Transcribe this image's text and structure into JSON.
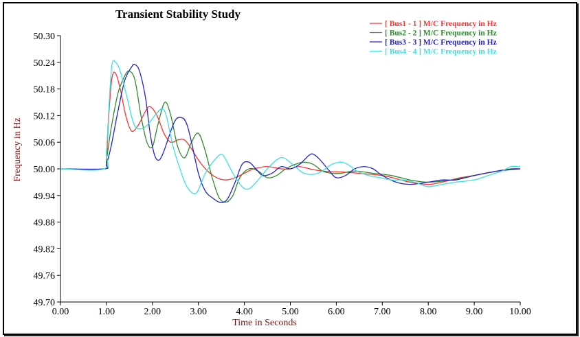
{
  "chart_data": {
    "type": "line",
    "title": "Transient Stability Study",
    "xlabel": "Time in Seconds",
    "ylabel": "Frequency in Hz",
    "xlim": [
      0,
      10
    ],
    "ylim": [
      49.7,
      50.3
    ],
    "x_ticks": [
      "0.00",
      "1.00",
      "2.00",
      "3.00",
      "4.00",
      "5.00",
      "6.00",
      "7.00",
      "8.00",
      "9.00",
      "10.00"
    ],
    "y_ticks": [
      "49.70",
      "49.76",
      "49.82",
      "49.88",
      "49.94",
      "50.00",
      "50.06",
      "50.12",
      "50.18",
      "50.24",
      "50.30"
    ],
    "grid": false,
    "legend_position": "top-right",
    "series": [
      {
        "name": "[ Bus1    -    1 ] M/C Frequency in Hz",
        "color": "#ff3030",
        "x": [
          0,
          0.95,
          1.0,
          1.05,
          1.12,
          1.2,
          1.3,
          1.42,
          1.55,
          1.7,
          1.85,
          1.95,
          2.1,
          2.25,
          2.4,
          2.55,
          2.7,
          2.85,
          3.0,
          3.2,
          3.4,
          3.6,
          3.8,
          4.0,
          4.2,
          4.5,
          4.8,
          5.0,
          5.2,
          5.5,
          5.8,
          6.1,
          6.5,
          7.0,
          7.3,
          7.6,
          8.0,
          8.3,
          8.7,
          9.0,
          9.5,
          9.8,
          10.0
        ],
        "values": [
          50.0,
          50.0,
          50.02,
          50.12,
          50.205,
          50.215,
          50.18,
          50.12,
          50.085,
          50.1,
          50.13,
          50.14,
          50.12,
          50.08,
          50.06,
          50.065,
          50.065,
          50.045,
          50.02,
          49.995,
          49.98,
          49.975,
          49.98,
          49.99,
          50.0,
          50.005,
          50.0,
          50.0,
          50.005,
          49.998,
          49.994,
          49.993,
          49.99,
          49.985,
          49.978,
          49.97,
          49.965,
          49.97,
          49.98,
          49.985,
          49.995,
          50.0,
          50.0
        ]
      },
      {
        "name": "[ Bus2    -    2 ] M/C Frequency in Hz",
        "color": "#2e8b2e",
        "x": [
          0,
          0.95,
          1.0,
          1.1,
          1.25,
          1.4,
          1.5,
          1.62,
          1.75,
          1.88,
          2.0,
          2.12,
          2.27,
          2.4,
          2.55,
          2.7,
          2.85,
          3.0,
          3.15,
          3.3,
          3.45,
          3.6,
          3.75,
          3.9,
          4.1,
          4.3,
          4.5,
          4.7,
          4.9,
          5.1,
          5.3,
          5.5,
          5.7,
          5.9,
          6.1,
          6.4,
          6.8,
          7.2,
          7.6,
          8.0,
          8.5,
          9.0,
          9.5,
          9.8,
          10.0
        ],
        "values": [
          50.0,
          50.0,
          50.02,
          50.09,
          50.17,
          50.21,
          50.22,
          50.2,
          50.12,
          50.06,
          50.05,
          50.1,
          50.15,
          50.12,
          50.05,
          50.025,
          50.06,
          50.08,
          50.04,
          49.98,
          49.935,
          49.925,
          49.94,
          49.98,
          50.0,
          49.995,
          49.98,
          49.985,
          50.0,
          50.01,
          50.015,
          50.01,
          49.995,
          49.99,
          49.99,
          49.995,
          49.99,
          49.985,
          49.975,
          49.97,
          49.975,
          49.985,
          49.995,
          50.0,
          50.0
        ]
      },
      {
        "name": "[ Bus3    -    3 ] M/C Frequency in Hz",
        "color": "#2323c8",
        "x": [
          0,
          0.95,
          1.0,
          1.1,
          1.25,
          1.4,
          1.55,
          1.62,
          1.72,
          1.85,
          1.95,
          2.05,
          2.15,
          2.25,
          2.35,
          2.5,
          2.65,
          2.75,
          2.85,
          3.0,
          3.15,
          3.3,
          3.45,
          3.55,
          3.65,
          3.8,
          3.95,
          4.1,
          4.25,
          4.4,
          4.6,
          4.8,
          5.0,
          5.2,
          5.4,
          5.5,
          5.65,
          5.85,
          6.0,
          6.2,
          6.4,
          6.6,
          6.8,
          7.0,
          7.3,
          7.6,
          8.0,
          8.3,
          8.6,
          9.0,
          9.5,
          10.0
        ],
        "values": [
          50.0,
          50.0,
          50.01,
          50.05,
          50.13,
          50.2,
          50.23,
          50.235,
          50.22,
          50.16,
          50.08,
          50.03,
          50.02,
          50.04,
          50.07,
          50.11,
          50.115,
          50.1,
          50.06,
          49.99,
          49.95,
          49.935,
          49.925,
          49.925,
          49.935,
          49.97,
          50.01,
          50.015,
          50.0,
          49.985,
          49.99,
          50.005,
          50.0,
          50.01,
          50.03,
          50.033,
          50.02,
          49.995,
          49.98,
          49.985,
          50.0,
          50.005,
          50.0,
          49.985,
          49.97,
          49.965,
          49.97,
          49.975,
          49.975,
          49.985,
          49.995,
          50.0
        ]
      },
      {
        "name": "[ Bus4    -    4 ] M/C Frequency in Hz",
        "color": "#3ce0e0",
        "x": [
          0,
          0.95,
          1.0,
          1.06,
          1.12,
          1.2,
          1.3,
          1.45,
          1.6,
          1.75,
          1.9,
          2.05,
          2.2,
          2.3,
          2.45,
          2.6,
          2.75,
          2.95,
          3.15,
          3.35,
          3.5,
          3.6,
          3.75,
          3.95,
          4.1,
          4.3,
          4.5,
          4.7,
          4.85,
          5.05,
          5.3,
          5.6,
          5.9,
          6.1,
          6.25,
          6.45,
          6.7,
          6.95,
          7.2,
          7.45,
          7.7,
          8.0,
          8.3,
          8.6,
          9.0,
          9.3,
          9.6,
          9.8,
          10.0
        ],
        "values": [
          50.0,
          50.0,
          50.04,
          50.15,
          50.235,
          50.24,
          50.22,
          50.16,
          50.1,
          50.09,
          50.1,
          50.12,
          50.135,
          50.12,
          50.05,
          50.0,
          49.96,
          49.945,
          49.99,
          50.02,
          50.033,
          50.02,
          49.99,
          49.96,
          49.955,
          49.975,
          50.0,
          50.02,
          50.025,
          50.01,
          49.99,
          49.99,
          50.01,
          50.015,
          50.01,
          49.995,
          49.985,
          49.98,
          49.975,
          49.975,
          49.97,
          49.96,
          49.965,
          49.97,
          49.975,
          49.985,
          49.995,
          50.005,
          50.005
        ]
      }
    ]
  }
}
